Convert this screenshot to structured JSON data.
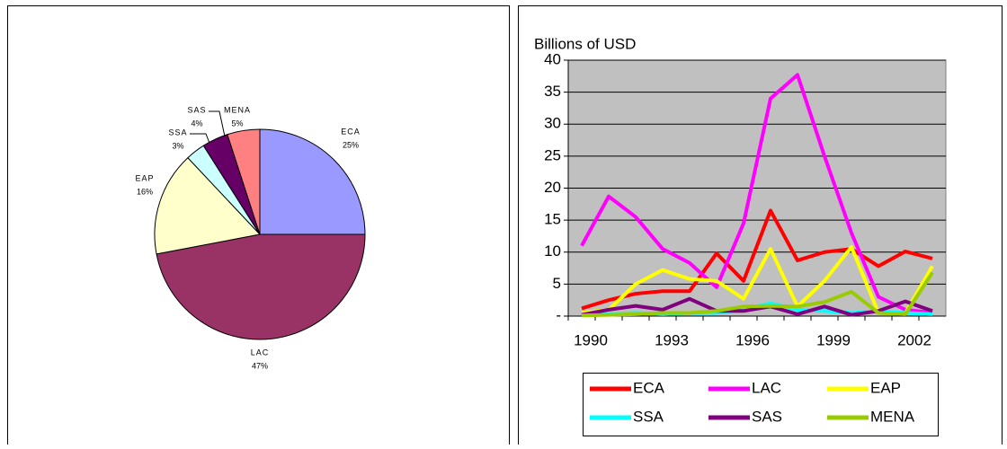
{
  "chart_data": [
    {
      "type": "pie",
      "categories": [
        "ECA",
        "LAC",
        "EAP",
        "SSA",
        "SAS",
        "MENA"
      ],
      "values": [
        25,
        47,
        16,
        3,
        4,
        5
      ],
      "value_labels": [
        "25%",
        "47%",
        "16%",
        "3%",
        "4%",
        "5%"
      ],
      "colors": [
        "#9999ff",
        "#993366",
        "#ffffcc",
        "#ccffff",
        "#660066",
        "#ff8080"
      ]
    },
    {
      "type": "line",
      "ylabel": "Billions of USD",
      "categories": [
        "1990",
        null,
        null,
        "1993",
        null,
        null,
        "1996",
        null,
        null,
        "1999",
        null,
        null,
        "2002",
        null
      ],
      "ylim": [
        0,
        40
      ],
      "yticks": [
        {
          "value": 0,
          "label": "-"
        },
        5,
        10,
        15,
        20,
        25,
        30,
        35,
        40
      ],
      "grid": true,
      "legend": "bottom",
      "series": [
        {
          "name": "ECA",
          "color": "#ff0000",
          "values": [
            1.2,
            2.5,
            3.5,
            3.9,
            3.9,
            9.8,
            5.5,
            16.5,
            8.7,
            10,
            10.5,
            7.8,
            10.1,
            9
          ]
        },
        {
          "name": "LAC",
          "color": "#ff00ff",
          "values": [
            11,
            18.7,
            15.5,
            10.5,
            8.3,
            4.5,
            14.5,
            34,
            37.7,
            25,
            13,
            3,
            1,
            0.5
          ]
        },
        {
          "name": "EAP",
          "color": "#ffff00",
          "values": [
            0.5,
            1,
            5,
            7.2,
            5.8,
            5.5,
            2.7,
            10.5,
            1.5,
            5.5,
            10.8,
            0.5,
            0.5,
            7.8
          ]
        },
        {
          "name": "SSA",
          "color": "#00ffff",
          "values": [
            0.1,
            0.3,
            0.5,
            0.3,
            0.5,
            0.5,
            1,
            2,
            1,
            0.8,
            0.5,
            0.8,
            0.5,
            0.3
          ]
        },
        {
          "name": "SAS",
          "color": "#800080",
          "values": [
            0.2,
            1,
            1.6,
            1,
            2.7,
            0.8,
            0.8,
            1.5,
            0.3,
            1.5,
            0.2,
            0.8,
            2.3,
            0.8
          ]
        },
        {
          "name": "MENA",
          "color": "#99cc00",
          "values": [
            0.1,
            0.2,
            0.3,
            0.5,
            0.5,
            0.8,
            1.5,
            1.6,
            1.5,
            2.2,
            3.8,
            0.5,
            0.3,
            6.8
          ]
        }
      ]
    }
  ]
}
